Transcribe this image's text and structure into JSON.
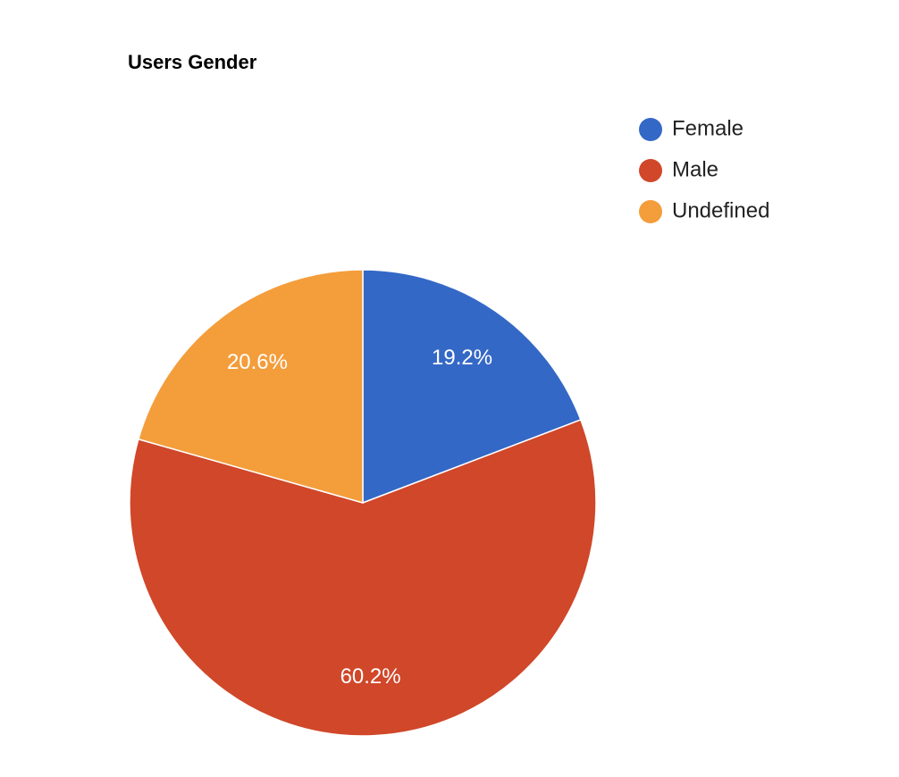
{
  "chart_data": {
    "type": "pie",
    "title": "Users Gender",
    "categories": [
      "Female",
      "Male",
      "Undefined"
    ],
    "values": [
      19.2,
      60.2,
      20.6
    ],
    "value_labels": [
      "19.2%",
      "60.2%",
      "20.6%"
    ],
    "colors": [
      "#3468c6",
      "#d04729",
      "#f49d3b"
    ],
    "legend": "right"
  }
}
